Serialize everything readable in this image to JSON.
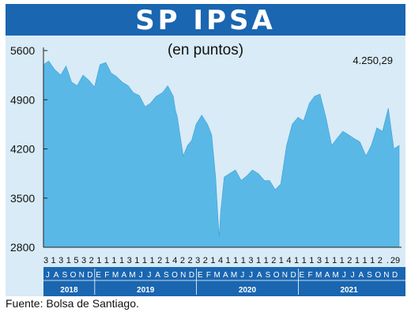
{
  "title": "SP IPSA",
  "source": "Fuente: Bolsa de Santiago.",
  "colors": {
    "title_bg": "#1a66b0",
    "panel_bg": "#d8ebf6",
    "area_fill": "#5ab8e6",
    "axis_band": "#1a66b0"
  },
  "chart_data": {
    "type": "area",
    "title": "SP IPSA",
    "subtitle": "(en puntos)",
    "last_value_label": "4.250,29",
    "ylim": [
      2800,
      5600
    ],
    "yticks": [
      5600,
      4900,
      4200,
      3500,
      2800
    ],
    "ytick_labels": [
      "5600",
      "4900",
      "4200",
      "3500",
      "2800"
    ],
    "grid": false,
    "x_range": [
      "2018-07-01",
      "2021-12-29"
    ],
    "day_labels": [
      "3",
      "1",
      "3",
      "1",
      "5",
      "3",
      "2",
      "1",
      "1",
      "1",
      "1",
      "3",
      "1",
      "1",
      "1",
      "2",
      "1",
      "4",
      "2",
      "2",
      "3",
      "2",
      "1",
      "4",
      "1",
      "1",
      "1",
      "3",
      "1",
      "1",
      "2",
      "1",
      "4",
      "1",
      "1",
      "1",
      "3",
      "1",
      "1",
      "1",
      "2",
      "1",
      "1",
      "1",
      "2",
      ".",
      "29"
    ],
    "month_labels": [
      "J",
      "A",
      "S",
      "O",
      "N",
      "D",
      "E",
      "F",
      "M",
      "A",
      "M",
      "J",
      "J",
      "A",
      "S",
      "O",
      "N",
      "D",
      "E",
      "F",
      "M",
      "A",
      "M",
      "J",
      "J",
      "A",
      "S",
      "O",
      "N",
      "D",
      "E",
      "F",
      "M",
      "A",
      "M",
      "J",
      "J",
      "A",
      "S",
      "O",
      "N",
      "D"
    ],
    "year_labels": [
      "2018",
      "2019",
      "2020",
      "2021"
    ],
    "series": [
      {
        "x": [
          "2018-07-01",
          "2018-07-20",
          "2018-08-10",
          "2018-09-01",
          "2018-09-20",
          "2018-10-10",
          "2018-10-30",
          "2018-11-20",
          "2018-12-10",
          "2018-12-31",
          "2019-01-20",
          "2019-02-10",
          "2019-03-01",
          "2019-03-20",
          "2019-04-10",
          "2019-05-01",
          "2019-05-20",
          "2019-06-10",
          "2019-07-01",
          "2019-07-20",
          "2019-08-10",
          "2019-09-01",
          "2019-09-20",
          "2019-10-10",
          "2019-10-18",
          "2019-10-25",
          "2019-11-01",
          "2019-11-15",
          "2019-11-30",
          "2019-12-15",
          "2019-12-31",
          "2020-01-20",
          "2020-02-10",
          "2020-02-25",
          "2020-03-10",
          "2020-03-18",
          "2020-03-23",
          "2020-03-28",
          "2020-04-10",
          "2020-04-30",
          "2020-05-20",
          "2020-06-10",
          "2020-07-01",
          "2020-07-20",
          "2020-08-10",
          "2020-09-01",
          "2020-09-20",
          "2020-10-10",
          "2020-10-30",
          "2020-11-20",
          "2020-12-10",
          "2020-12-31",
          "2021-01-20",
          "2021-02-10",
          "2021-03-01",
          "2021-03-20",
          "2021-04-10",
          "2021-05-01",
          "2021-05-20",
          "2021-06-10",
          "2021-07-01",
          "2021-07-20",
          "2021-08-10",
          "2021-09-01",
          "2021-09-20",
          "2021-10-10",
          "2021-10-30",
          "2021-11-20",
          "2021-12-10",
          "2021-12-29"
        ],
        "y": [
          5400,
          5450,
          5330,
          5250,
          5380,
          5150,
          5100,
          5250,
          5180,
          5080,
          5400,
          5430,
          5280,
          5230,
          5150,
          5100,
          5000,
          4960,
          4800,
          4850,
          4950,
          5000,
          5100,
          4950,
          4750,
          4650,
          4450,
          4100,
          4250,
          4320,
          4550,
          4680,
          4550,
          4400,
          3800,
          3250,
          2950,
          3300,
          3800,
          3850,
          3900,
          3750,
          3820,
          3900,
          3850,
          3750,
          3750,
          3620,
          3700,
          4250,
          4550,
          4650,
          4600,
          4850,
          4950,
          4980,
          4650,
          4250,
          4350,
          4450,
          4400,
          4350,
          4300,
          4100,
          4250,
          4500,
          4450,
          4780,
          4200,
          4250
        ]
      }
    ]
  }
}
